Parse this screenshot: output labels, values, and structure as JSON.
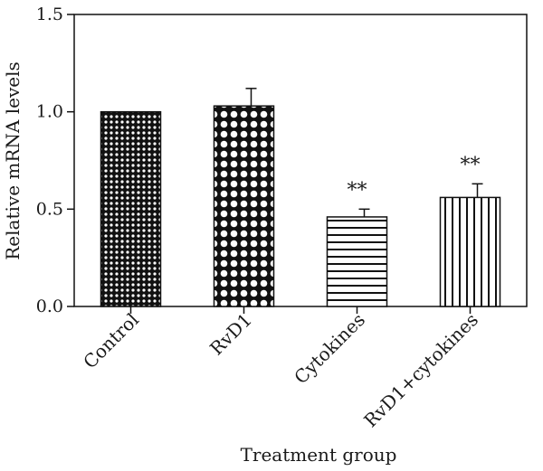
{
  "chart_data": {
    "type": "bar",
    "title": "",
    "xlabel": "Treatment group",
    "ylabel": "Relative mRNA levels",
    "ylim": [
      0,
      1.5
    ],
    "yticks": [
      "0.0",
      "0.5",
      "1.0",
      "1.5"
    ],
    "yticks_values": [
      0,
      0.5,
      1.0,
      1.5
    ],
    "grid": false,
    "categories": [
      "Control",
      "RvD1",
      "Cytokines",
      "RvD1+cytokines"
    ],
    "values": [
      1.0,
      1.03,
      0.46,
      0.56
    ],
    "error": [
      0.0,
      0.09,
      0.04,
      0.07
    ],
    "significance": [
      "",
      "",
      "**",
      "**"
    ],
    "patterns": [
      "dense-dots",
      "large-dots",
      "horizontal-lines",
      "vertical-lines"
    ]
  }
}
